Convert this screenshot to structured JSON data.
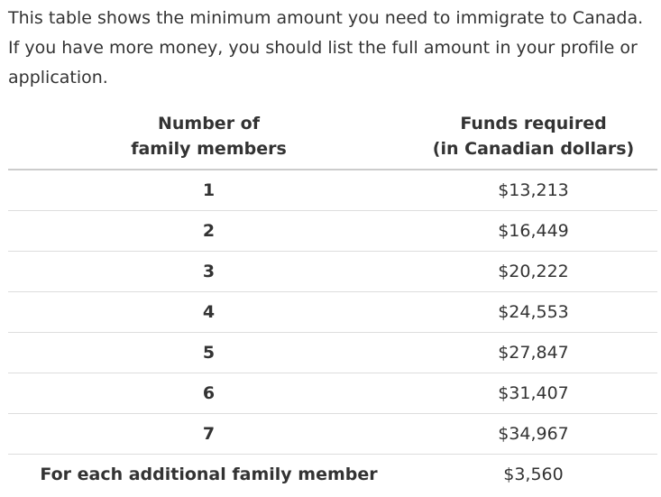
{
  "intro": {
    "text": "This table shows the minimum amount you need to immigrate to Canada. If you have more money, you should list the full amount in your profile or application."
  },
  "table": {
    "headers": {
      "members_line1": "Number of",
      "members_line2": "family members",
      "funds_line1": "Funds required",
      "funds_line2": "(in Canadian dollars)"
    },
    "rows": [
      {
        "members": "1",
        "funds": "$13,213"
      },
      {
        "members": "2",
        "funds": "$16,449"
      },
      {
        "members": "3",
        "funds": "$20,222"
      },
      {
        "members": "4",
        "funds": "$24,553"
      },
      {
        "members": "5",
        "funds": "$27,847"
      },
      {
        "members": "6",
        "funds": "$31,407"
      },
      {
        "members": "7",
        "funds": "$34,967"
      },
      {
        "members": "For each additional family member",
        "funds": "$3,560"
      }
    ]
  }
}
